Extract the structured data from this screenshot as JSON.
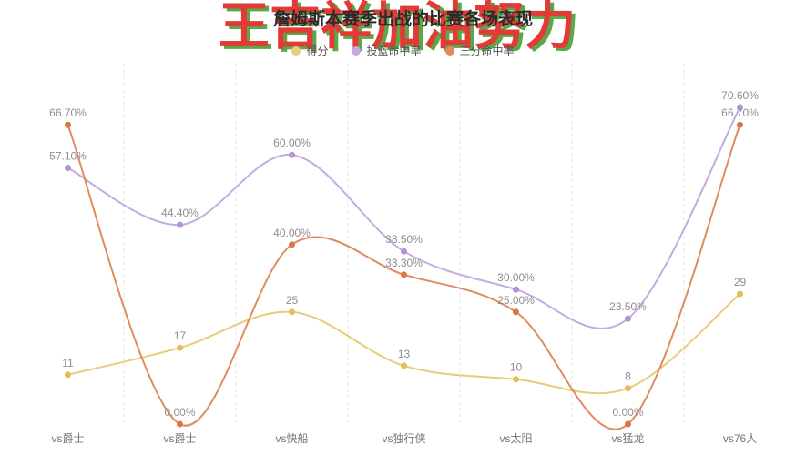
{
  "page": {
    "title": "詹姆斯本赛季出战的比赛各场表现",
    "watermark": "王吉祥加油努力"
  },
  "style": {
    "title_color": "#2b2b2b",
    "watermark_color": "#e23b36",
    "watermark_shadow_color": "#5aa849",
    "legend_text_color": "#555555",
    "data_label_color": "#8e8e8e",
    "axis_label_color": "#757575",
    "gridline_color": "#e4e4e4",
    "background": "#ffffff"
  },
  "chart_data": {
    "type": "line",
    "title": "詹姆斯本赛季出战的比赛各场表现",
    "smooth": true,
    "legend_position": "top",
    "grid": {
      "vertical_dashed": true,
      "horizontal": false
    },
    "ylim": [
      0,
      80
    ],
    "y_axis_labels_visible": false,
    "categories": [
      "vs爵士",
      "vs爵士",
      "vs快船",
      "vs独行侠",
      "vs太阳",
      "vs猛龙",
      "vs76人"
    ],
    "series": [
      {
        "name": "得分",
        "color": "#e8cd78",
        "dot_color": "#e2bf58",
        "values": [
          11,
          17,
          25,
          13,
          10,
          8,
          29
        ],
        "labels": [
          "11",
          "17",
          "25",
          "13",
          "10",
          "8",
          "29"
        ]
      },
      {
        "name": "投篮命中率",
        "color": "#c3abe0",
        "dot_color": "#b193d6",
        "values": [
          57.1,
          44.4,
          60.0,
          38.5,
          30.0,
          23.5,
          70.6
        ],
        "labels": [
          "57.10%",
          "44.40%",
          "60.00%",
          "38.50%",
          "30.00%",
          "23.50%",
          "70.60%"
        ]
      },
      {
        "name": "三分命中率",
        "color": "#e18a5f",
        "dot_color": "#dc7745",
        "values": [
          66.7,
          0.0,
          40.0,
          33.3,
          25.0,
          0.0,
          66.7
        ],
        "labels": [
          "66.70%",
          "0.00%",
          "40.00%",
          "33.30%",
          "25.00%",
          "0.00%",
          "66.70%"
        ]
      }
    ]
  }
}
